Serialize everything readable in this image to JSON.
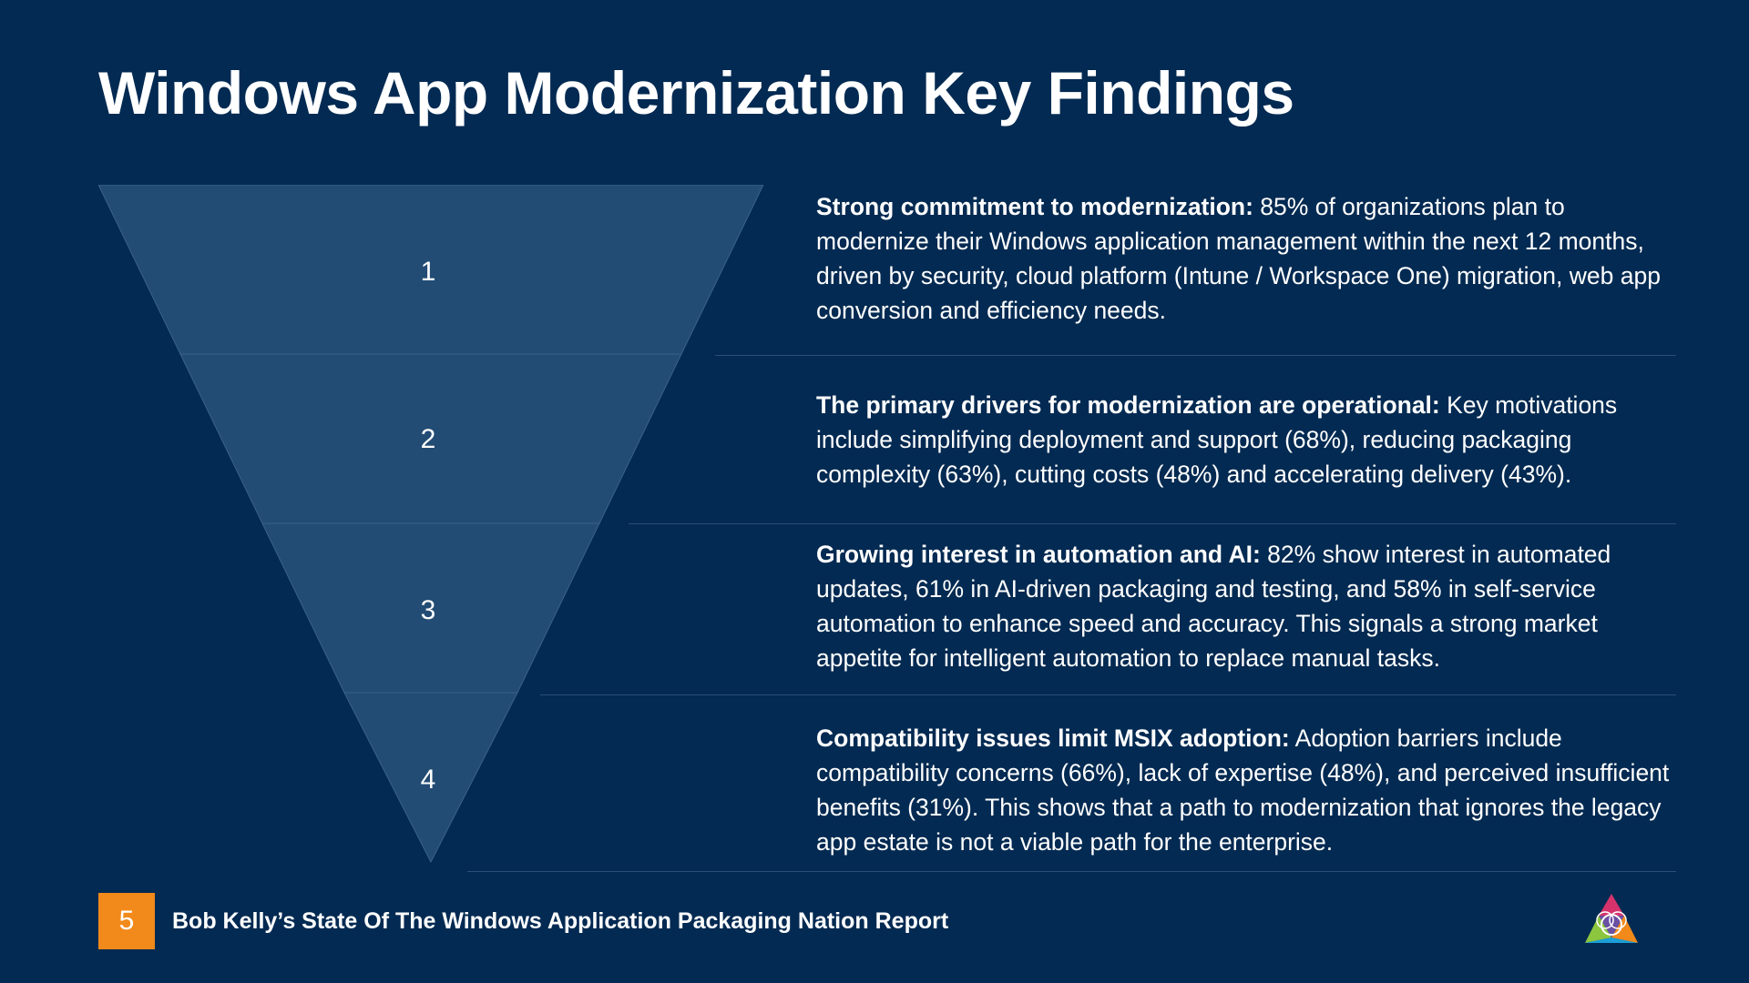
{
  "title": "Windows App Modernization Key Findings",
  "funnel": {
    "levels": [
      "1",
      "2",
      "3",
      "4"
    ]
  },
  "findings": [
    {
      "heading": "Strong commitment to modernization:",
      "body": " 85% of organizations plan to modernize their Windows application management within the next 12 months, driven by security, cloud platform (Intune / Workspace One) migration, web app conversion and efficiency needs."
    },
    {
      "heading": "The primary drivers for modernization are operational:",
      "body": " Key motivations include simplifying deployment and support (68%), reducing packaging complexity (63%), cutting costs (48%) and accelerating delivery (43%)."
    },
    {
      "heading": "Growing interest in automation and AI:",
      "body": " 82% show interest in automated updates, 61% in AI-driven packaging and testing, and 58% in self-service automation to enhance speed and accuracy. This signals a strong market appetite for intelligent automation to replace manual tasks."
    },
    {
      "heading": "Compatibility issues limit MSIX adoption:",
      "body": " Adoption barriers include compatibility concerns (66%), lack of expertise (48%), and perceived insufficient benefits (31%). This shows that a path to modernization that ignores the legacy app estate is not a viable path for the enterprise."
    }
  ],
  "footer": {
    "page_number": "5",
    "report_title": "Bob Kelly’s State Of The Windows Application Packaging Nation Report"
  },
  "colors": {
    "background": "#032a52",
    "funnel_fill": "#234c74",
    "accent": "#f18a1a"
  }
}
